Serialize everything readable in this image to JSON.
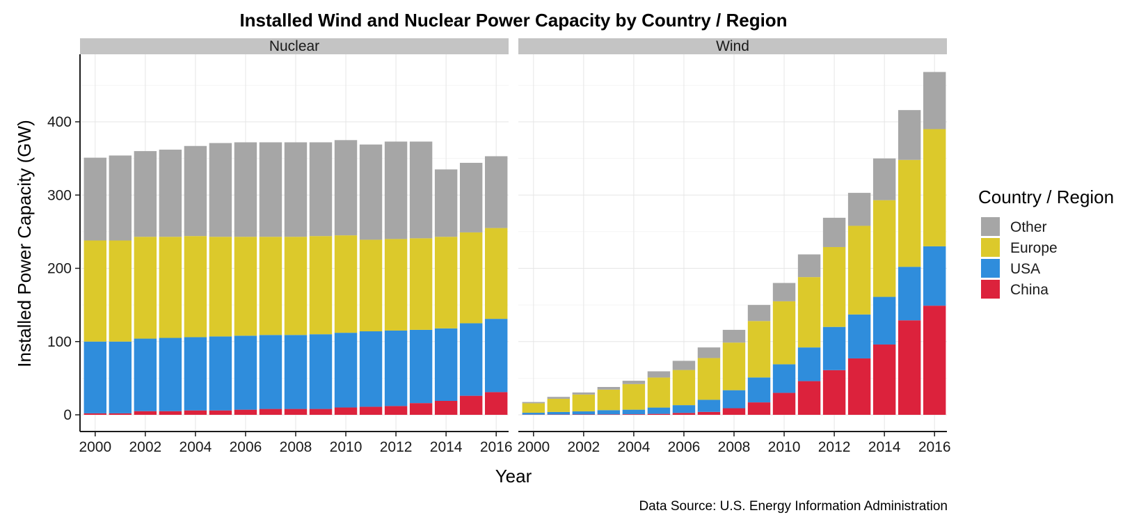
{
  "chart_data": {
    "type": "bar",
    "stacked": true,
    "title": "Installed Wind and Nuclear Power Capacity by Country / Region",
    "xlabel": "Year",
    "ylabel": "Installed Power Capacity (GW)",
    "caption": "Data Source: U.S. Energy Information Administration",
    "x": [
      2000,
      2001,
      2002,
      2003,
      2004,
      2005,
      2006,
      2007,
      2008,
      2009,
      2010,
      2011,
      2012,
      2013,
      2014,
      2015,
      2016
    ],
    "x_ticks": [
      "2000",
      "2002",
      "2004",
      "2006",
      "2008",
      "2010",
      "2012",
      "2014",
      "2016"
    ],
    "y_ticks": [
      "0",
      "100",
      "200",
      "300",
      "400"
    ],
    "ylim": [
      0,
      490
    ],
    "grid": true,
    "legend": {
      "title": "Country / Region",
      "position": "right",
      "entries": [
        "Other",
        "Europe",
        "USA",
        "China"
      ]
    },
    "colors": {
      "Other": "#a6a6a6",
      "Europe": "#dcc92b",
      "USA": "#2f8ddc",
      "China": "#dc223c"
    },
    "panels": [
      {
        "name": "Nuclear",
        "series": [
          {
            "name": "China",
            "values": [
              2,
              2,
              5,
              5,
              6,
              6,
              7,
              8,
              8,
              8,
              10,
              11,
              12,
              16,
              19,
              26,
              31
            ]
          },
          {
            "name": "USA",
            "values": [
              98,
              98,
              99,
              100,
              100,
              101,
              101,
              101,
              101,
              102,
              102,
              103,
              103,
              100,
              99,
              99,
              100
            ]
          },
          {
            "name": "Europe",
            "values": [
              138,
              138,
              139,
              138,
              138,
              136,
              135,
              134,
              134,
              134,
              133,
              125,
              125,
              125,
              125,
              124,
              124
            ]
          },
          {
            "name": "Other",
            "values": [
              113,
              116,
              117,
              119,
              123,
              128,
              129,
              129,
              129,
              128,
              130,
              130,
              133,
              132,
              92,
              95,
              98
            ]
          }
        ]
      },
      {
        "name": "Wind",
        "series": [
          {
            "name": "China",
            "values": [
              0.3,
              0.4,
              0.5,
              0.6,
              0.8,
              1.3,
              2.6,
              4,
              9,
              17,
              30,
              46,
              61,
              77,
              96,
              129,
              149
            ]
          },
          {
            "name": "USA",
            "values": [
              2.5,
              3.5,
              4.2,
              5.8,
              6.2,
              8.6,
              10.6,
              16.5,
              24.6,
              34,
              39,
              46,
              59,
              60,
              65,
              73,
              81
            ]
          },
          {
            "name": "Europe",
            "values": [
              13,
              18,
              23,
              28,
              35,
              41,
              48,
              57,
              65,
              77,
              86,
              96,
              109,
              121,
              132,
              146,
              160
            ]
          },
          {
            "name": "Other",
            "values": [
              1.7,
              2.6,
              2.8,
              3.6,
              4.5,
              8.5,
              12.5,
              14.5,
              17.4,
              22,
              25,
              31,
              40,
              45,
              57,
              68,
              78
            ]
          }
        ]
      }
    ]
  }
}
